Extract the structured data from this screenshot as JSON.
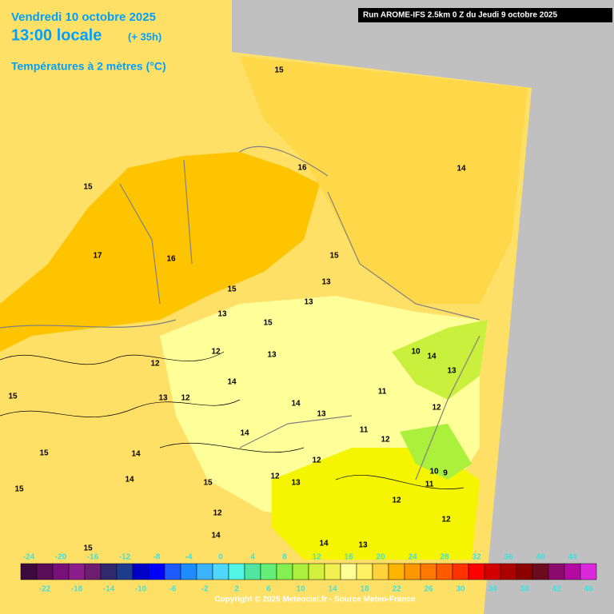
{
  "header": {
    "date": "Vendredi 10 octobre 2025",
    "time": "13:00 locale",
    "lead": "(+ 35h)",
    "parameter": "Températures à 2 mètres (°C)",
    "run": "Run AROME-IFS 2.5km 0 Z du Jeudi 9 octobre 2025"
  },
  "contour_labels": [
    15,
    16,
    14,
    15,
    17,
    16,
    15,
    13,
    15,
    13,
    13,
    15,
    10,
    14,
    13,
    12,
    12,
    13,
    14,
    11,
    15,
    13,
    12,
    14,
    13,
    12,
    11,
    14,
    12,
    15,
    14,
    12,
    10,
    9,
    12,
    14,
    15,
    13,
    11,
    15,
    12,
    12,
    14,
    14,
    13,
    15,
    12
  ],
  "colorbar": {
    "ticks": [
      -24,
      -22,
      -20,
      -18,
      -16,
      -14,
      -12,
      -10,
      -8,
      -6,
      -4,
      -2,
      0,
      2,
      4,
      6,
      8,
      10,
      12,
      14,
      16,
      18,
      20,
      22,
      24,
      26,
      28,
      30,
      32,
      34,
      36,
      38,
      40,
      42,
      44,
      46
    ],
    "colors": [
      "#3c0a3c",
      "#5a0e5a",
      "#78107a",
      "#8c1e8c",
      "#6e1e6e",
      "#32286e",
      "#1e3c8c",
      "#0000c8",
      "#0000ff",
      "#1e5aff",
      "#1e8cff",
      "#3cb4ff",
      "#50d7ff",
      "#50f5e6",
      "#50e6a0",
      "#64f078",
      "#82f050",
      "#aaf03c",
      "#d2f03c",
      "#f0f050",
      "#ffff96",
      "#fff064",
      "#ffd23c",
      "#ffb400",
      "#ff9600",
      "#ff7800",
      "#ff5a00",
      "#ff3200",
      "#ff0000",
      "#d20000",
      "#aa0000",
      "#8c0000",
      "#6e0a1e",
      "#8c0a6e",
      "#b40aa0",
      "#dc28dc"
    ]
  },
  "copyright": "Copyright © 2025 Meteociel.fr - Source Meteo-France"
}
